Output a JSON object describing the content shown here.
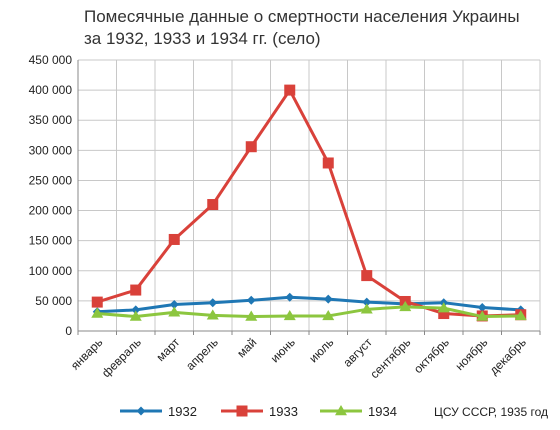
{
  "chart_data": {
    "type": "line",
    "title_line1": "Помесячные данные о смертности населения Украины",
    "title_line2": "за 1932, 1933 и 1934 гг. (село)",
    "categories": [
      "январь",
      "февраль",
      "март",
      "апрель",
      "май",
      "июнь",
      "июль",
      "август",
      "сентябрь",
      "октябрь",
      "ноябрь",
      "декабрь"
    ],
    "yticks": [
      "0",
      "50 000",
      "100 000",
      "150 000",
      "200 000",
      "250 000",
      "300 000",
      "350 000",
      "400 000",
      "450 000"
    ],
    "ylim": [
      0,
      450000
    ],
    "grid": true,
    "legend_position": "bottom",
    "series": [
      {
        "name": "1932",
        "color": "#1f77b4",
        "marker": "diamond",
        "values": [
          32000,
          35000,
          44000,
          47000,
          51000,
          56000,
          53000,
          48000,
          45000,
          47000,
          39000,
          35000
        ]
      },
      {
        "name": "1933",
        "color": "#d9413a",
        "marker": "square",
        "values": [
          48000,
          68000,
          152000,
          210000,
          306000,
          400000,
          279000,
          92000,
          49000,
          29000,
          25000,
          27000
        ]
      },
      {
        "name": "1934",
        "color": "#8cc63f",
        "marker": "triangle",
        "values": [
          29000,
          24000,
          31000,
          26000,
          24000,
          25000,
          25000,
          36000,
          40000,
          38000,
          24000,
          25000
        ]
      }
    ],
    "source": "ЦСУ СССР, 1935 год"
  }
}
